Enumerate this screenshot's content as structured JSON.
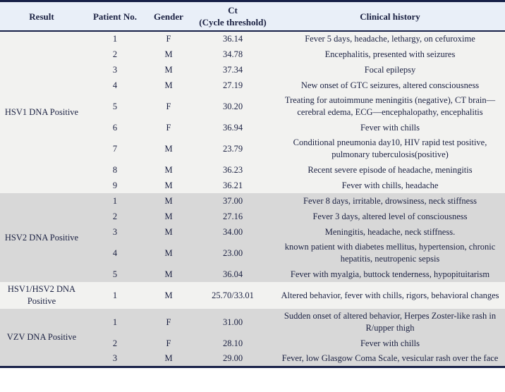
{
  "table": {
    "header": {
      "result": "Result",
      "patient_no": "Patient No.",
      "gender": "Gender",
      "ct_line1": "Ct",
      "ct_line2": "(Cycle threshold)",
      "clinical_history": "Clinical history"
    },
    "groups": [
      {
        "result": "HSV1 DNA Positive",
        "rows": [
          {
            "patient_no": "1",
            "gender": "F",
            "ct": "36.14",
            "clinical_history": "Fever 5 days, headache, lethargy, on cefuroxime"
          },
          {
            "patient_no": "2",
            "gender": "M",
            "ct": "34.78",
            "clinical_history": "Encephalitis, presented with seizures"
          },
          {
            "patient_no": "3",
            "gender": "M",
            "ct": "37.34",
            "clinical_history": "Focal epilepsy"
          },
          {
            "patient_no": "4",
            "gender": "M",
            "ct": "27.19",
            "clinical_history": "New onset of GTC seizures, altered consciousness"
          },
          {
            "patient_no": "5",
            "gender": "F",
            "ct": "30.20",
            "clinical_history": "Treating for autoimmune meningitis (negative), CT brain—cerebral edema, ECG—encephalopathy, encephalitis"
          },
          {
            "patient_no": "6",
            "gender": "F",
            "ct": "36.94",
            "clinical_history": "Fever with chills"
          },
          {
            "patient_no": "7",
            "gender": "M",
            "ct": "23.79",
            "clinical_history": "Conditional pneumonia day10, HIV rapid test positive, pulmonary tuberculosis(positive)"
          },
          {
            "patient_no": "8",
            "gender": "M",
            "ct": "36.23",
            "clinical_history": "Recent severe episode of headache, meningitis"
          },
          {
            "patient_no": "9",
            "gender": "M",
            "ct": "36.21",
            "clinical_history": "Fever with chills, headache"
          }
        ]
      },
      {
        "result": "HSV2 DNA Positive",
        "rows": [
          {
            "patient_no": "1",
            "gender": "M",
            "ct": "37.00",
            "clinical_history": "Fever 8 days, irritable, drowsiness, neck stiffness"
          },
          {
            "patient_no": "2",
            "gender": "M",
            "ct": "27.16",
            "clinical_history": "Fever 3 days, altered level of consciousness"
          },
          {
            "patient_no": "3",
            "gender": "M",
            "ct": "34.00",
            "clinical_history": "Meningitis, headache, neck stiffness."
          },
          {
            "patient_no": "4",
            "gender": "M",
            "ct": "23.00",
            "clinical_history": "known patient with diabetes mellitus, hypertension, chronic hepatitis, neutropenic sepsis"
          },
          {
            "patient_no": "5",
            "gender": "M",
            "ct": "36.04",
            "clinical_history": "Fever with myalgia, buttock tenderness, hypopituitarism"
          }
        ]
      },
      {
        "result": "HSV1/HSV2 DNA Positive",
        "rows": [
          {
            "patient_no": "1",
            "gender": "M",
            "ct": "25.70/33.01",
            "clinical_history": "Altered behavior, fever with chills, rigors, behavioral changes"
          }
        ]
      },
      {
        "result": "VZV DNA Positive",
        "rows": [
          {
            "patient_no": "1",
            "gender": "F",
            "ct": "31.00",
            "clinical_history": "Sudden onset of altered behavior, Herpes Zoster-like rash in R/upper thigh"
          },
          {
            "patient_no": "2",
            "gender": "F",
            "ct": "28.10",
            "clinical_history": "Fever with chills"
          },
          {
            "patient_no": "3",
            "gender": "M",
            "ct": "29.00",
            "clinical_history": "Fever, low Glasgow Coma Scale, vesicular rash over the face"
          }
        ]
      }
    ]
  },
  "colors": {
    "border_navy": "#172048",
    "header_bg": "#e9eff8",
    "group_light_bg": "#f2f2f0",
    "group_gray_bg": "#d8d8d8",
    "text": "#1b2142"
  }
}
